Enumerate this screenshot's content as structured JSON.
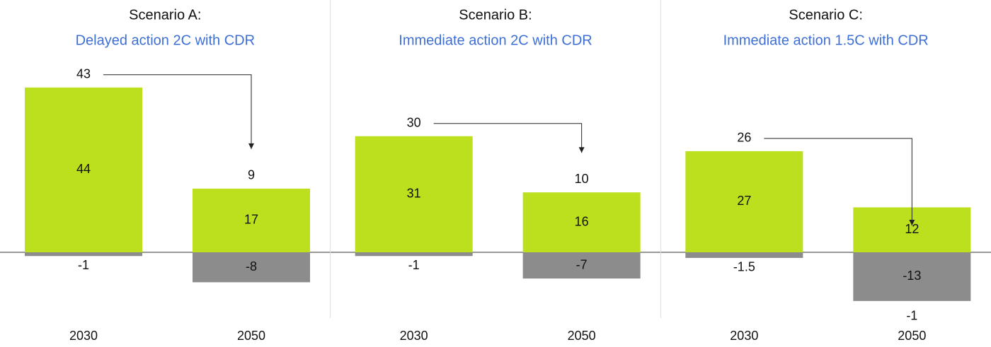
{
  "chart_data": [
    {
      "type": "bar",
      "title": "Scenario A:",
      "subtitle": "Delayed action 2C with CDR",
      "categories": [
        "2030",
        "2050"
      ],
      "series": [
        {
          "color": "#bde01e",
          "values": [
            44,
            17
          ]
        },
        {
          "color": "#8c8c8c",
          "values": [
            -1,
            -8
          ]
        }
      ],
      "totals": [
        43,
        9
      ],
      "ylim": [
        -15,
        50
      ]
    },
    {
      "type": "bar",
      "title": "Scenario B:",
      "subtitle": "Immediate action 2C with CDR",
      "categories": [
        "2030",
        "2050"
      ],
      "series": [
        {
          "color": "#bde01e",
          "values": [
            31,
            16
          ]
        },
        {
          "color": "#8c8c8c",
          "values": [
            -1,
            -7
          ]
        }
      ],
      "totals": [
        30,
        10
      ],
      "ylim": [
        -15,
        50
      ]
    },
    {
      "type": "bar",
      "title": "Scenario C:",
      "subtitle": "Immediate action 1.5C with CDR",
      "categories": [
        "2030",
        "2050"
      ],
      "series": [
        {
          "color": "#bde01e",
          "values": [
            27,
            12
          ]
        },
        {
          "color": "#8c8c8c",
          "values": [
            -1.5,
            -13
          ]
        }
      ],
      "totals": [
        26,
        -1
      ],
      "ylim": [
        -15,
        50
      ]
    }
  ]
}
